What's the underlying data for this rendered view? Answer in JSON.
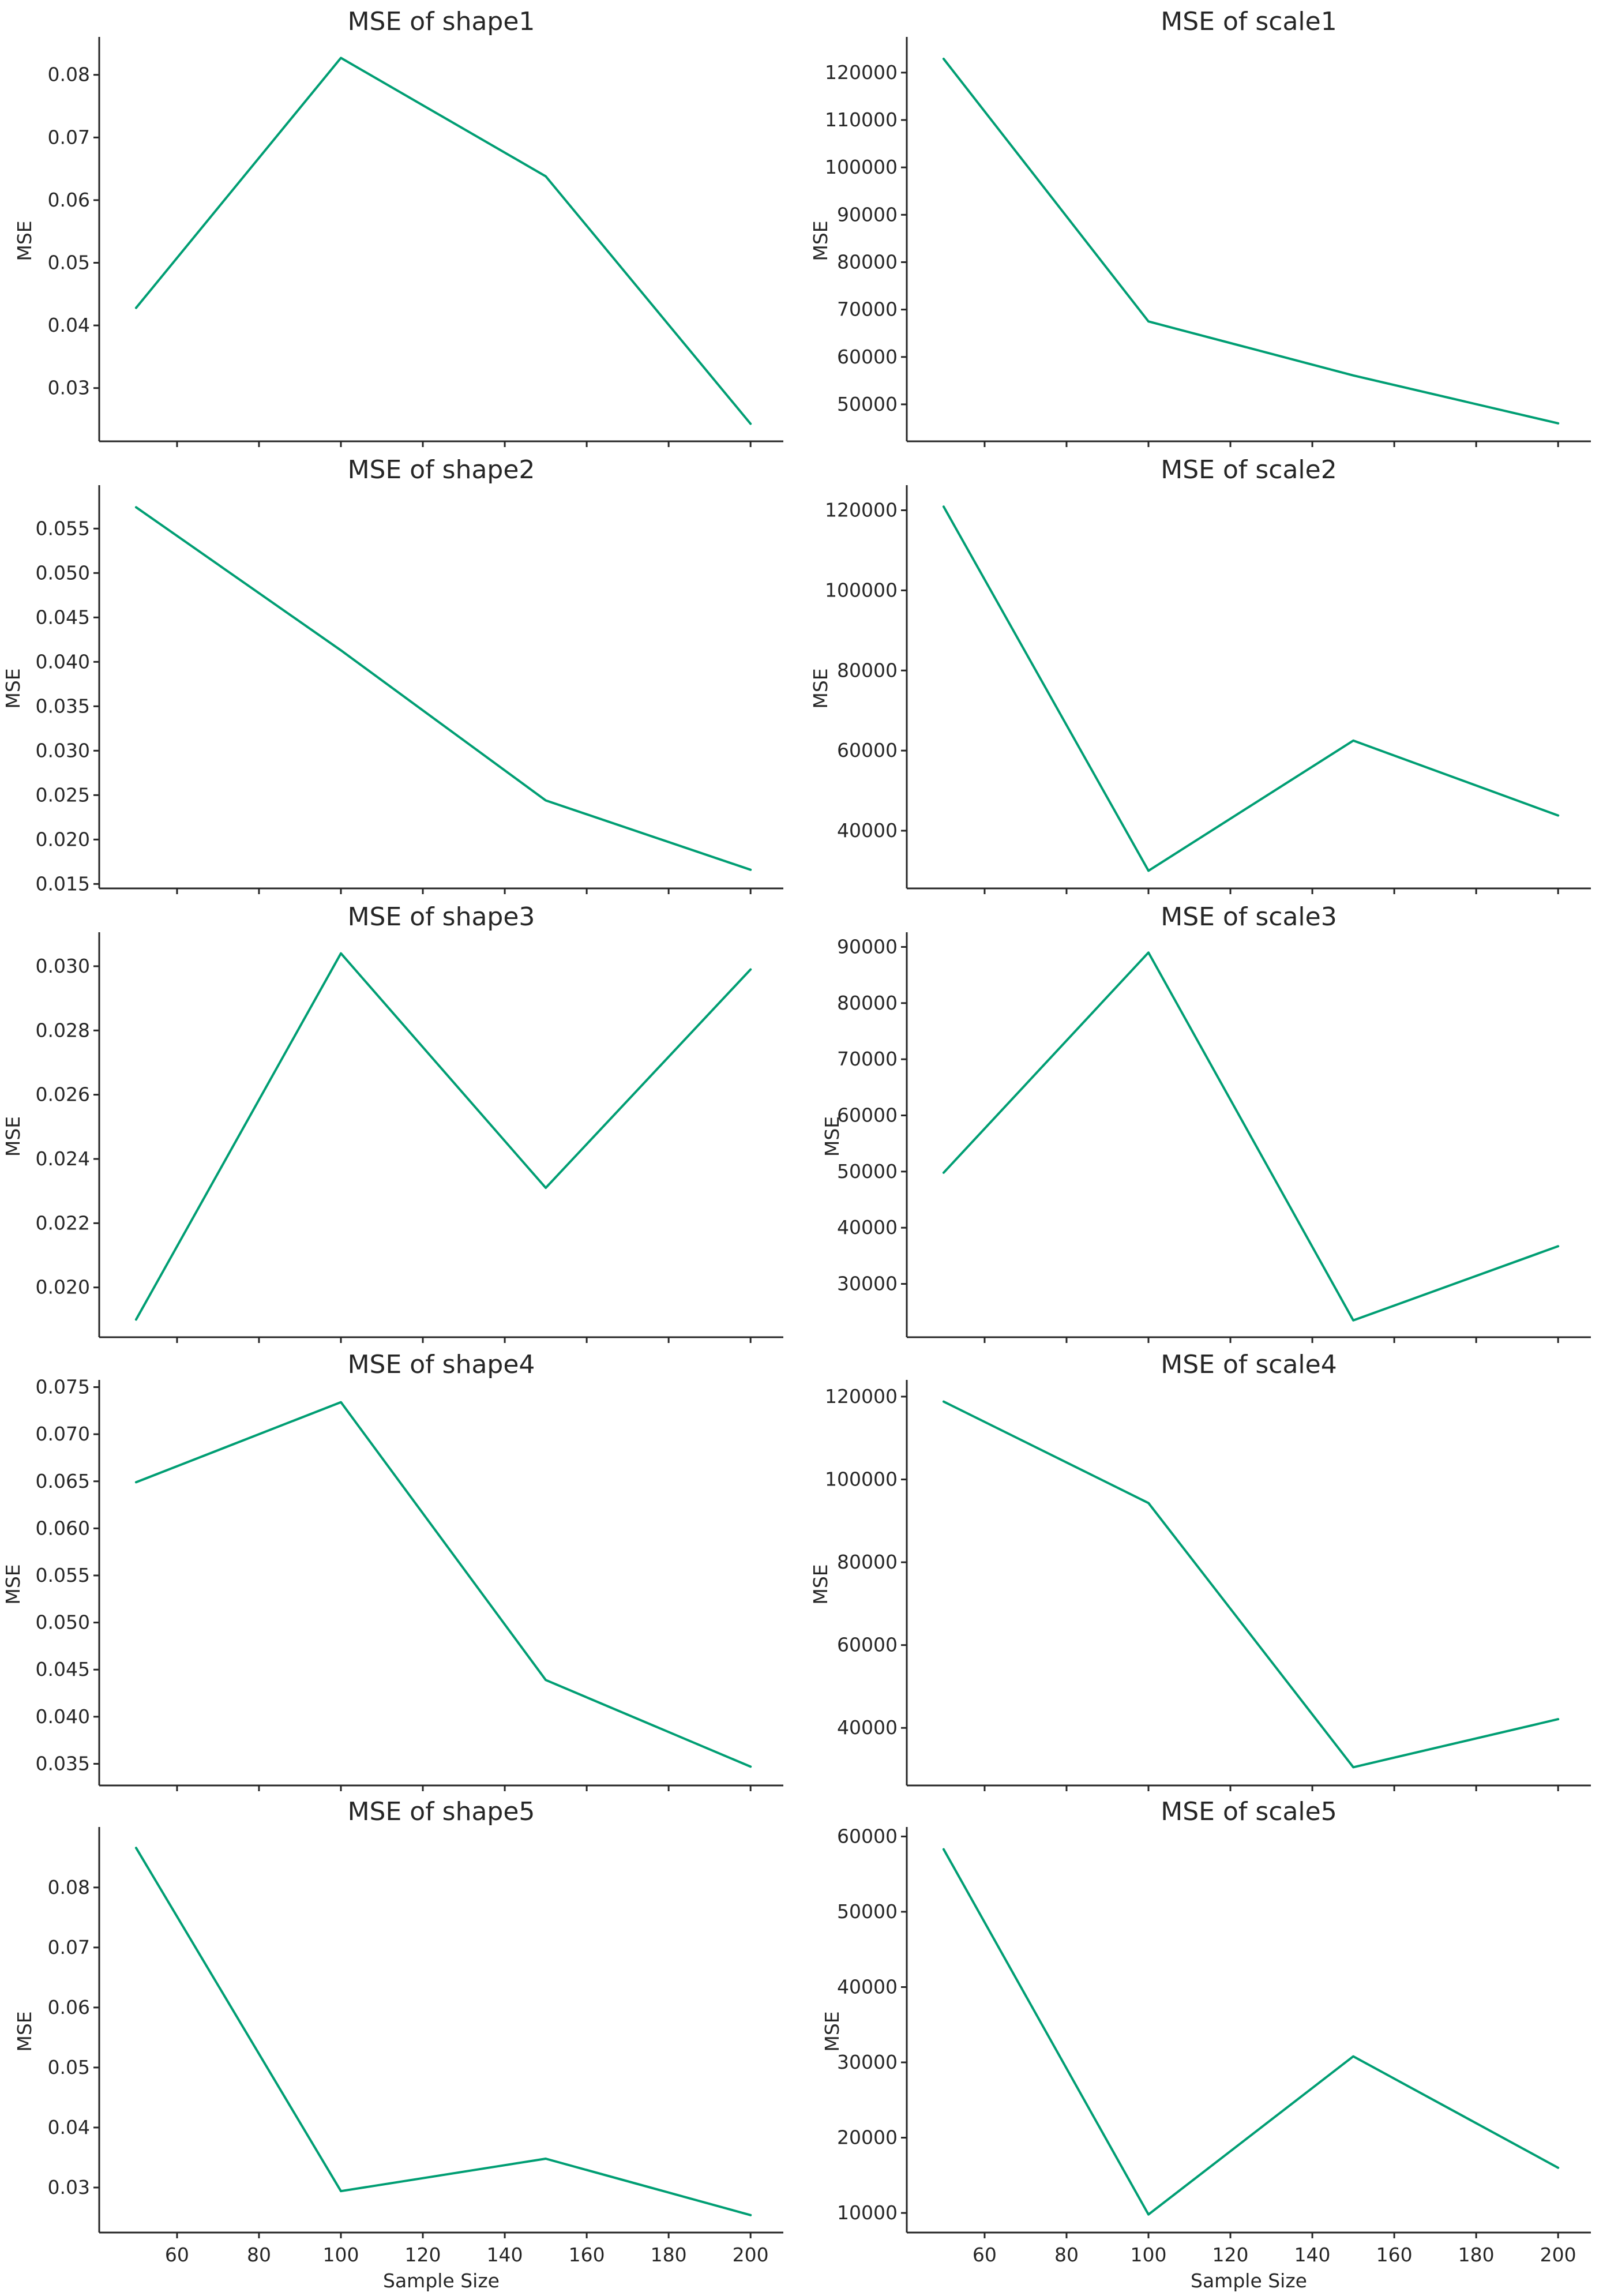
{
  "chart_data": [
    {
      "type": "line",
      "title": "MSE of shape1",
      "xlabel": "",
      "ylabel": "MSE",
      "x": [
        50,
        100,
        150,
        200
      ],
      "series": [
        {
          "values": [
            0.0428,
            0.0827,
            0.0638,
            0.0243
          ],
          "color": "#009e73"
        }
      ],
      "xlim": [
        41,
        208
      ],
      "ylim": [
        0.0215,
        0.0855
      ],
      "xticks": [
        60,
        80,
        100,
        120,
        140,
        160,
        180,
        200
      ],
      "xtick_labels_visible": false,
      "yticks": [
        0.03,
        0.04,
        0.05,
        0.06,
        0.07,
        0.08
      ],
      "ytick_labels": [
        "0.03",
        "0.04",
        "0.05",
        "0.06",
        "0.07",
        "0.08"
      ],
      "grid": false
    },
    {
      "type": "line",
      "title": "MSE of scale1",
      "xlabel": "",
      "ylabel": "MSE",
      "x": [
        50,
        100,
        150,
        200
      ],
      "series": [
        {
          "values": [
            122900,
            67500,
            56100,
            46000
          ],
          "color": "#009e73"
        }
      ],
      "xlim": [
        41,
        208
      ],
      "ylim": [
        42200,
        126800
      ],
      "xticks": [
        60,
        80,
        100,
        120,
        140,
        160,
        180,
        200
      ],
      "xtick_labels_visible": false,
      "yticks": [
        50000,
        60000,
        70000,
        80000,
        90000,
        100000,
        110000,
        120000
      ],
      "ytick_labels": [
        "50000",
        "60000",
        "70000",
        "80000",
        "90000",
        "100000",
        "110000",
        "120000"
      ],
      "grid": false
    },
    {
      "type": "line",
      "title": "MSE of shape2",
      "xlabel": "",
      "ylabel": "MSE",
      "x": [
        50,
        100,
        150,
        200
      ],
      "series": [
        {
          "values": [
            0.0574,
            0.0413,
            0.0244,
            0.0166
          ],
          "color": "#009e73"
        }
      ],
      "xlim": [
        41,
        208
      ],
      "ylim": [
        0.0145,
        0.0595
      ],
      "xticks": [
        60,
        80,
        100,
        120,
        140,
        160,
        180,
        200
      ],
      "xtick_labels_visible": false,
      "yticks": [
        0.015,
        0.02,
        0.025,
        0.03,
        0.035,
        0.04,
        0.045,
        0.05,
        0.055
      ],
      "ytick_labels": [
        "0.015",
        "0.020",
        "0.025",
        "0.030",
        "0.035",
        "0.040",
        "0.045",
        "0.050",
        "0.055"
      ],
      "grid": false
    },
    {
      "type": "line",
      "title": "MSE of scale2",
      "xlabel": "",
      "ylabel": "MSE",
      "x": [
        50,
        100,
        150,
        200
      ],
      "series": [
        {
          "values": [
            120900,
            30000,
            62500,
            43800
          ],
          "color": "#009e73"
        }
      ],
      "xlim": [
        41,
        208
      ],
      "ylim": [
        25600,
        125400
      ],
      "xticks": [
        60,
        80,
        100,
        120,
        140,
        160,
        180,
        200
      ],
      "xtick_labels_visible": false,
      "yticks": [
        40000,
        60000,
        80000,
        100000,
        120000
      ],
      "ytick_labels": [
        "40000",
        "60000",
        "80000",
        "100000",
        "120000"
      ],
      "grid": false
    },
    {
      "type": "line",
      "title": "MSE of shape3",
      "xlabel": "",
      "ylabel": "MSE",
      "x": [
        50,
        100,
        150,
        200
      ],
      "series": [
        {
          "values": [
            0.019,
            0.0304,
            0.0231,
            0.0299
          ],
          "color": "#009e73"
        }
      ],
      "xlim": [
        41,
        208
      ],
      "ylim": [
        0.01845,
        0.03095
      ],
      "xticks": [
        60,
        80,
        100,
        120,
        140,
        160,
        180,
        200
      ],
      "xtick_labels_visible": false,
      "yticks": [
        0.02,
        0.022,
        0.024,
        0.026,
        0.028,
        0.03
      ],
      "ytick_labels": [
        "0.020",
        "0.022",
        "0.024",
        "0.026",
        "0.028",
        "0.030"
      ],
      "grid": false
    },
    {
      "type": "line",
      "title": "MSE of scale3",
      "xlabel": "",
      "ylabel": "MSE",
      "x": [
        50,
        100,
        150,
        200
      ],
      "series": [
        {
          "values": [
            49800,
            89000,
            23500,
            36700
          ],
          "color": "#009e73"
        }
      ],
      "xlim": [
        41,
        208
      ],
      "ylim": [
        20500,
        92000
      ],
      "xticks": [
        60,
        80,
        100,
        120,
        140,
        160,
        180,
        200
      ],
      "xtick_labels_visible": false,
      "yticks": [
        30000,
        40000,
        50000,
        60000,
        70000,
        80000,
        90000
      ],
      "ytick_labels": [
        "30000",
        "40000",
        "50000",
        "60000",
        "70000",
        "80000",
        "90000"
      ],
      "grid": false
    },
    {
      "type": "line",
      "title": "MSE of shape4",
      "xlabel": "",
      "ylabel": "MSE",
      "x": [
        50,
        100,
        150,
        200
      ],
      "series": [
        {
          "values": [
            0.0649,
            0.0734,
            0.0439,
            0.0347
          ],
          "color": "#009e73"
        }
      ],
      "xlim": [
        41,
        208
      ],
      "ylim": [
        0.0327,
        0.0754
      ],
      "xticks": [
        60,
        80,
        100,
        120,
        140,
        160,
        180,
        200
      ],
      "xtick_labels_visible": false,
      "yticks": [
        0.035,
        0.04,
        0.045,
        0.05,
        0.055,
        0.06,
        0.065,
        0.07,
        0.075
      ],
      "ytick_labels": [
        "0.035",
        "0.040",
        "0.045",
        "0.050",
        "0.055",
        "0.060",
        "0.065",
        "0.070",
        "0.075"
      ],
      "grid": false
    },
    {
      "type": "line",
      "title": "MSE of scale4",
      "xlabel": "",
      "ylabel": "MSE",
      "x": [
        50,
        100,
        150,
        200
      ],
      "series": [
        {
          "values": [
            118800,
            94300,
            30500,
            42100
          ],
          "color": "#009e73"
        }
      ],
      "xlim": [
        41,
        208
      ],
      "ylim": [
        26100,
        123200
      ],
      "xticks": [
        60,
        80,
        100,
        120,
        140,
        160,
        180,
        200
      ],
      "xtick_labels_visible": false,
      "yticks": [
        40000,
        60000,
        80000,
        100000,
        120000
      ],
      "ytick_labels": [
        "40000",
        "60000",
        "80000",
        "100000",
        "120000"
      ],
      "grid": false
    },
    {
      "type": "line",
      "title": "MSE of shape5",
      "xlabel": "Sample Size",
      "ylabel": "MSE",
      "x": [
        50,
        100,
        150,
        200
      ],
      "series": [
        {
          "values": [
            0.0866,
            0.0294,
            0.0348,
            0.0254
          ],
          "color": "#009e73"
        }
      ],
      "xlim": [
        41,
        208
      ],
      "ylim": [
        0.0225,
        0.0895
      ],
      "xticks": [
        60,
        80,
        100,
        120,
        140,
        160,
        180,
        200
      ],
      "xtick_labels_visible": true,
      "xtick_labels": [
        "60",
        "80",
        "100",
        "120",
        "140",
        "160",
        "180",
        "200"
      ],
      "yticks": [
        0.03,
        0.04,
        0.05,
        0.06,
        0.07,
        0.08
      ],
      "ytick_labels": [
        "0.03",
        "0.04",
        "0.05",
        "0.06",
        "0.07",
        "0.08"
      ],
      "grid": false
    },
    {
      "type": "line",
      "title": "MSE of scale5",
      "xlabel": "Sample Size",
      "ylabel": "MSE",
      "x": [
        50,
        100,
        150,
        200
      ],
      "series": [
        {
          "values": [
            58300,
            9800,
            30800,
            16000
          ],
          "color": "#009e73"
        }
      ],
      "xlim": [
        41,
        208
      ],
      "ylim": [
        7400,
        60800
      ],
      "xticks": [
        60,
        80,
        100,
        120,
        140,
        160,
        180,
        200
      ],
      "xtick_labels_visible": true,
      "xtick_labels": [
        "60",
        "80",
        "100",
        "120",
        "140",
        "160",
        "180",
        "200"
      ],
      "yticks": [
        10000,
        20000,
        30000,
        40000,
        50000,
        60000
      ],
      "ytick_labels": [
        "10000",
        "20000",
        "30000",
        "40000",
        "50000",
        "60000"
      ],
      "grid": false
    }
  ]
}
